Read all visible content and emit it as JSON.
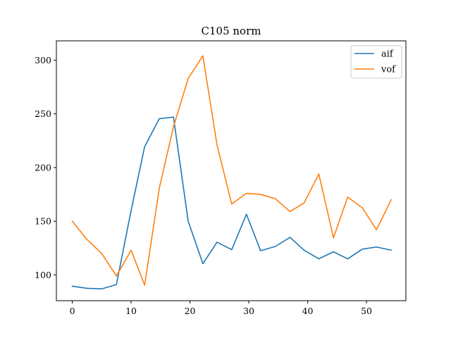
{
  "chart_data": {
    "type": "line",
    "title": "C105 norm",
    "xlabel": "",
    "ylabel": "",
    "xlim": [
      -2.7,
      56.7
    ],
    "ylim": [
      76,
      318
    ],
    "xticks": [
      0,
      10,
      20,
      30,
      40,
      50
    ],
    "yticks": [
      100,
      150,
      200,
      250,
      300
    ],
    "grid": false,
    "legend_position": "top-right",
    "x": [
      0,
      2.5,
      5,
      7.5,
      10,
      12.3,
      14.8,
      17.2,
      19.7,
      22.2,
      24.6,
      27.1,
      29.6,
      32.0,
      34.5,
      37.0,
      39.4,
      41.9,
      44.4,
      46.8,
      49.3,
      51.7,
      54.2
    ],
    "series": [
      {
        "name": "aif",
        "color": "#1f77b4",
        "values": [
          89.5,
          87.5,
          87.0,
          91.0,
          160.0,
          219.5,
          245.5,
          247.0,
          150.0,
          110.5,
          130.5,
          123.5,
          156.5,
          122.5,
          126.5,
          135.0,
          123.0,
          115.0,
          121.5,
          115.0,
          124.0,
          126.0,
          123.0
        ]
      },
      {
        "name": "vof",
        "color": "#ff7f0e",
        "values": [
          150.0,
          133.0,
          120.0,
          99.0,
          123.0,
          90.5,
          181.0,
          238.0,
          283.0,
          304.0,
          221.0,
          166.0,
          176.0,
          175.0,
          171.0,
          159.0,
          167.0,
          194.0,
          134.5,
          172.5,
          162.5,
          142.0,
          170.0
        ]
      }
    ]
  }
}
